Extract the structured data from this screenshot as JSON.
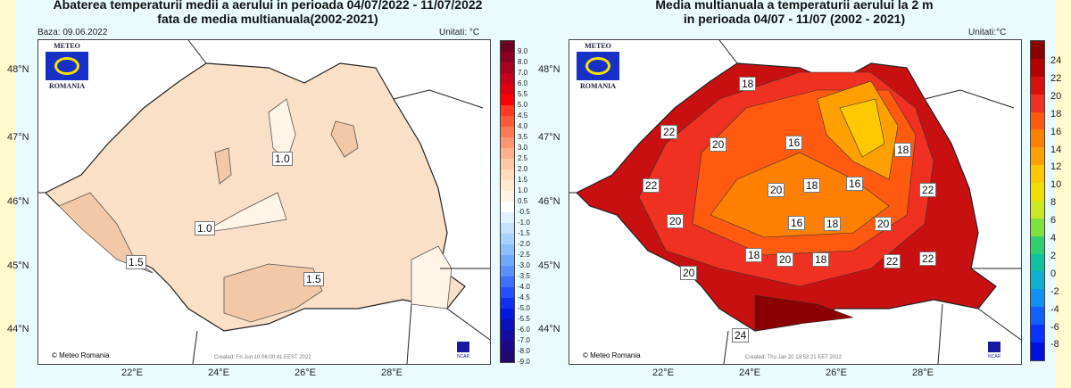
{
  "left": {
    "title1": "Abaterea temperaturii medii a aerului in perioada 04/07/2022 - 11/07/2022",
    "title2": "fata de media multianuala(2002-2021)",
    "base": "Baza: 09.06.2022",
    "units": "Unitati: °C",
    "logo_top": "METEO",
    "logo_bottom": "ROMANIA",
    "copyright": "© Meteo Romania",
    "created": "Created: Fri Jun 10 06:00:41 EEST 2022",
    "ncar": "NCAR",
    "colorbar": [
      "9.0",
      "8.0",
      "7.0",
      "6.0",
      "5.5",
      "5.0",
      "4.5",
      "4.0",
      "3.5",
      "3.0",
      "2.5",
      "2.0",
      "1.5",
      "1.0",
      "0.5",
      "-0.5",
      "-1.0",
      "-1.5",
      "-2.0",
      "-2.5",
      "-3.0",
      "-3.5",
      "-4.0",
      "-4.5",
      "-5.0",
      "-5.5",
      "-6.0",
      "-7.0",
      "-8.0",
      "-9.0"
    ],
    "colors": [
      "#6b0022",
      "#8a0025",
      "#a80020",
      "#c8001c",
      "#e00010",
      "#ff0000",
      "#ff3a20",
      "#ff5a35",
      "#ff7850",
      "#ff9670",
      "#ffb08c",
      "#ffc8a4",
      "#ffdcbc",
      "#ffead2",
      "#fff5e6",
      "#ffffff",
      "#dff0ff",
      "#c2e2ff",
      "#a6d2ff",
      "#8ac0ff",
      "#70a8ff",
      "#5890ff",
      "#3c70ff",
      "#2450ff",
      "#1030f0",
      "#0018e0",
      "#0a10c0",
      "#140ca0",
      "#1a0a88",
      "#200870"
    ],
    "contour_labels": [
      "1.0",
      "1.0",
      "1.5",
      "1.5"
    ]
  },
  "right": {
    "title1": "Media multianuala a temperaturii aerului la 2 m",
    "title2": "in perioada 04/07 - 11/07 (2002 - 2021)",
    "units": "Unitati:°C",
    "logo_top": "METEO",
    "logo_bottom": "ROMANIA",
    "copyright": "© Meteo Romania",
    "created": "Created: Thu Jan 20 19:53:21 EET 2022",
    "ncar": "NCAR",
    "colorbar": [
      "24",
      "22",
      "20",
      "18",
      "16",
      "14",
      "12",
      "10",
      "8",
      "6",
      "4",
      "2",
      "0",
      "-2",
      "-4",
      "-6",
      "-8"
    ],
    "colors": [
      "#8b0000",
      "#b40000",
      "#d81010",
      "#f03020",
      "#ff5a10",
      "#ff8000",
      "#ffa000",
      "#ffc800",
      "#f0e000",
      "#c8e820",
      "#80e040",
      "#30d070",
      "#10c0a0",
      "#10b0d0",
      "#1090f0",
      "#1060ff",
      "#0830ff",
      "#0010e0"
    ],
    "contour_labels": [
      "18",
      "22",
      "20",
      "16",
      "18",
      "22",
      "20",
      "18",
      "16",
      "22",
      "20",
      "16",
      "18",
      "20",
      "18",
      "20",
      "18",
      "22",
      "20",
      "22",
      "24"
    ]
  },
  "lat": [
    "48°N",
    "47°N",
    "46°N",
    "45°N",
    "44°N"
  ],
  "lon": [
    "22°E",
    "24°E",
    "26°E",
    "28°E"
  ]
}
